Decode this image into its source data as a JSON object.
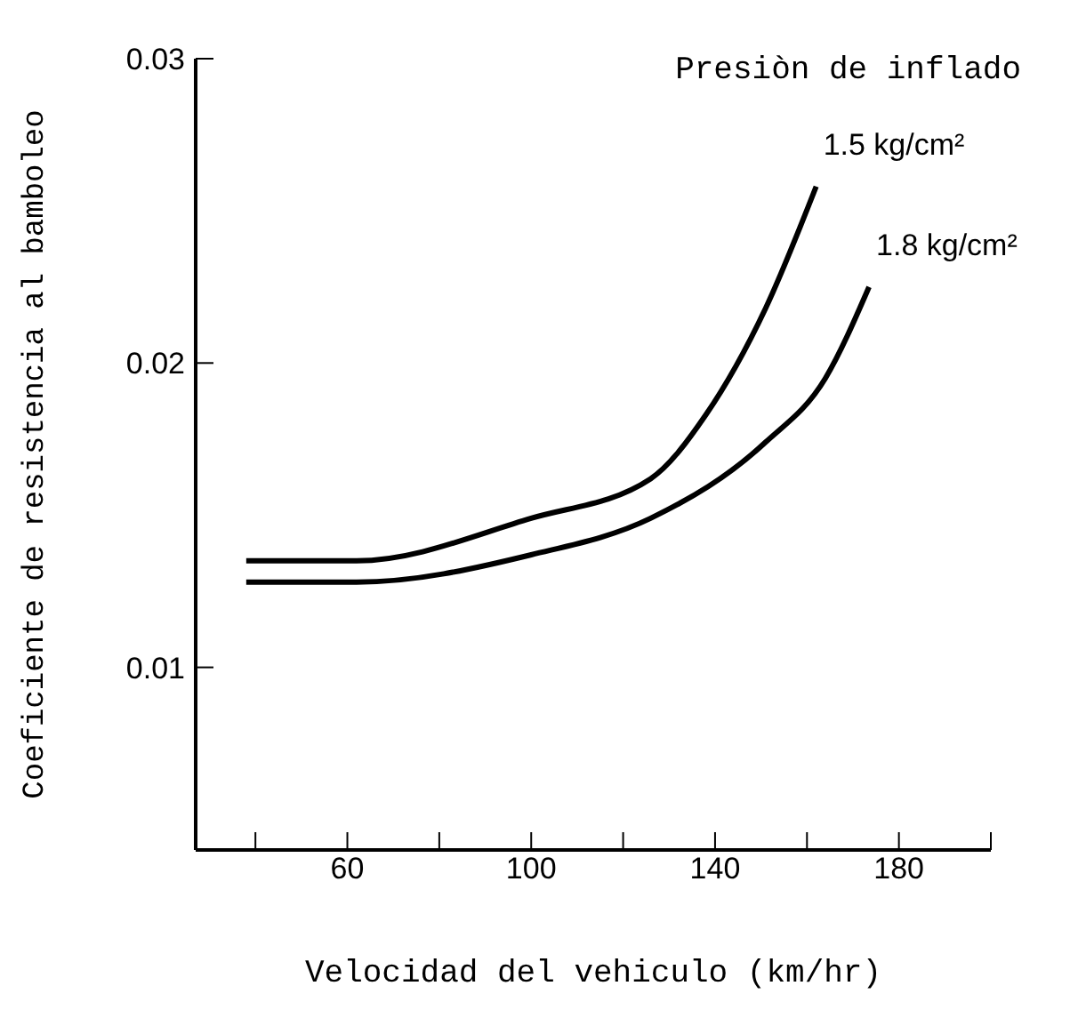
{
  "chart_data": {
    "type": "line",
    "xlabel": "Velocidad del vehiculo (km/hr)",
    "ylabel": "Coeficiente de resistencia al bamboleo",
    "annotations": [
      "Presiòn de inflado"
    ],
    "series": [
      {
        "name": "1.5 kg/cm²",
        "color": "#000000",
        "x": [
          38,
          62,
          100,
          126,
          138,
          151,
          162
        ],
        "values": [
          0.0135,
          0.0135,
          0.0149,
          0.0162,
          0.0183,
          0.0218,
          0.0258
        ]
      },
      {
        "name": "1.8 kg/cm²",
        "color": "#000000",
        "x": [
          38,
          62,
          100,
          126,
          151,
          164,
          173.5
        ],
        "values": [
          0.0128,
          0.0128,
          0.0137,
          0.0149,
          0.0174,
          0.0195,
          0.0225
        ]
      }
    ],
    "xlim": [
      27,
      200
    ],
    "xticks": [
      {
        "value": 40,
        "label": null
      },
      60,
      {
        "value": 80,
        "label": null
      },
      100,
      {
        "value": 120,
        "label": null
      },
      140,
      {
        "value": 160,
        "label": null
      },
      180,
      {
        "value": 200,
        "label": null
      }
    ],
    "ylim": [
      0.004,
      0.03
    ],
    "yticks": [
      0.01,
      0.02,
      0.03
    ],
    "grid": false,
    "legend": false,
    "marker": "none",
    "line_style": "solid"
  }
}
